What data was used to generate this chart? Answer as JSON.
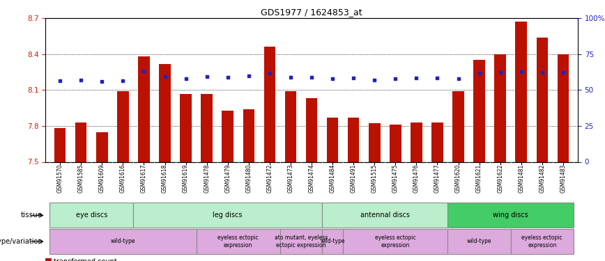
{
  "title": "GDS1977 / 1624853_at",
  "samples": [
    "GSM91570",
    "GSM91585",
    "GSM91609",
    "GSM91616",
    "GSM91617",
    "GSM91618",
    "GSM91619",
    "GSM91478",
    "GSM91479",
    "GSM91480",
    "GSM91472",
    "GSM91473",
    "GSM91474",
    "GSM91484",
    "GSM91491",
    "GSM91515",
    "GSM91475",
    "GSM91476",
    "GSM91477",
    "GSM91620",
    "GSM91621",
    "GSM91622",
    "GSM91481",
    "GSM91482",
    "GSM91483"
  ],
  "red_values": [
    7.78,
    7.83,
    7.75,
    8.09,
    8.38,
    8.32,
    8.07,
    8.07,
    7.93,
    7.94,
    8.46,
    8.09,
    8.03,
    7.87,
    7.87,
    7.82,
    7.81,
    7.83,
    7.83,
    8.09,
    8.35,
    8.4,
    8.67,
    8.54,
    8.4
  ],
  "blue_values": [
    8.175,
    8.185,
    8.17,
    8.18,
    8.26,
    8.215,
    8.195,
    8.21,
    8.205,
    8.22,
    8.24,
    8.205,
    8.205,
    8.195,
    8.2,
    8.185,
    8.195,
    8.2,
    8.2,
    8.195,
    8.24,
    8.25,
    8.255,
    8.245,
    8.25
  ],
  "ymin": 7.5,
  "ymax": 8.7,
  "yticks": [
    7.5,
    7.8,
    8.1,
    8.4,
    8.7
  ],
  "right_yticks": [
    0,
    25,
    50,
    75,
    100
  ],
  "right_yticklabels": [
    "0",
    "25",
    "50",
    "75",
    "100%"
  ],
  "tissue_groups": [
    {
      "label": "eye discs",
      "start": 0,
      "end": 3,
      "color": "#bbeecc"
    },
    {
      "label": "leg discs",
      "start": 4,
      "end": 12,
      "color": "#bbeecc"
    },
    {
      "label": "antennal discs",
      "start": 13,
      "end": 18,
      "color": "#bbeecc"
    },
    {
      "label": "wing discs",
      "start": 19,
      "end": 24,
      "color": "#44cc66"
    }
  ],
  "geno_groups": [
    {
      "label": "wild-type",
      "start": 0,
      "end": 6,
      "color": "#ddaadd"
    },
    {
      "label": "eyeless ectopic\nexpression",
      "start": 7,
      "end": 10,
      "color": "#ddaadd"
    },
    {
      "label": "ato mutant, eyeless\nectopic expression",
      "start": 11,
      "end": 12,
      "color": "#ddaadd"
    },
    {
      "label": "wild-type",
      "start": 13,
      "end": 13,
      "color": "#ddaadd"
    },
    {
      "label": "eyeless ectopic\nexpression",
      "start": 14,
      "end": 18,
      "color": "#ddaadd"
    },
    {
      "label": "wild-type",
      "start": 19,
      "end": 21,
      "color": "#ddaadd"
    },
    {
      "label": "eyeless ectopic\nexpression",
      "start": 22,
      "end": 24,
      "color": "#ddaadd"
    }
  ],
  "bar_color": "#bb1100",
  "dot_color": "#2222bb",
  "label_color_left": "#cc2200",
  "label_color_right": "#2222bb",
  "bg_color": "#ffffff",
  "plot_bg": "#ffffff",
  "xticklabel_bg": "#cccccc"
}
